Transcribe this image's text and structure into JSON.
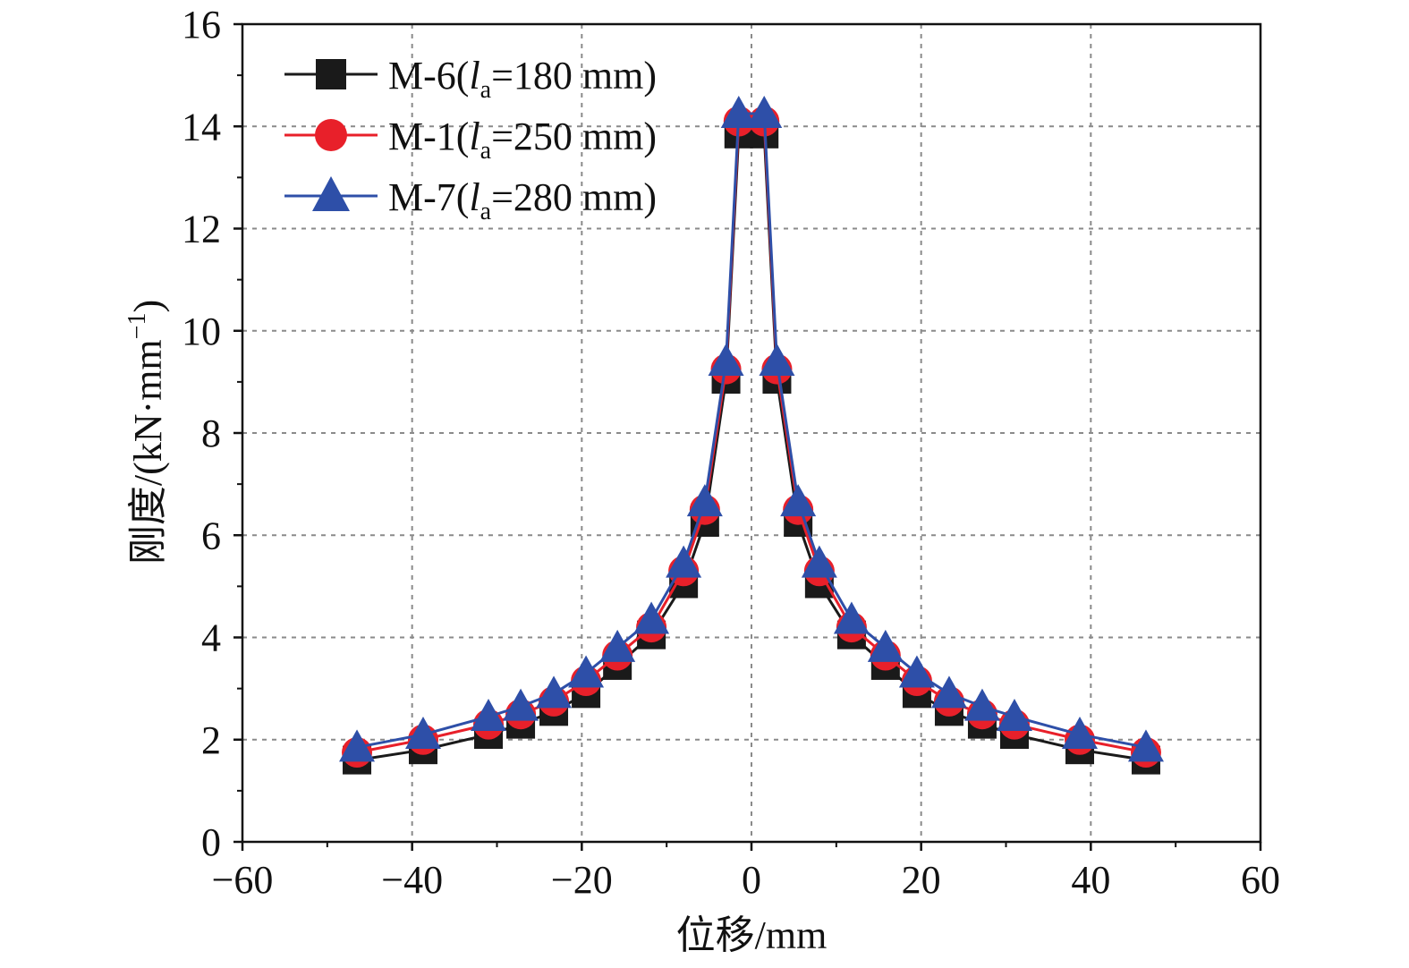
{
  "chart_data": {
    "type": "line",
    "title": "",
    "xlabel": "位移/mm",
    "ylabel": "刚度/(kN·mm",
    "ylabel_sup": "−1",
    "ylabel_close": ")",
    "xlim": [
      -60,
      60
    ],
    "ylim": [
      0,
      16
    ],
    "x_ticks": [
      -60,
      -40,
      -20,
      0,
      20,
      40,
      60
    ],
    "x_tick_labels": [
      "−60",
      "−40",
      "−20",
      "0",
      "20",
      "40",
      "60"
    ],
    "y_ticks": [
      0,
      2,
      4,
      6,
      8,
      10,
      12,
      14,
      16
    ],
    "y_tick_labels": [
      "0",
      "2",
      "4",
      "6",
      "8",
      "10",
      "12",
      "14",
      "16"
    ],
    "grid": true,
    "legend_position": "top-left",
    "x": [
      -46.5,
      -38.7,
      -31.0,
      -27.2,
      -23.3,
      -19.5,
      -15.8,
      -11.8,
      -8.0,
      -5.5,
      -3.0,
      -1.5,
      1.5,
      3.0,
      5.5,
      8.0,
      11.8,
      15.8,
      19.5,
      23.3,
      27.2,
      31.0,
      38.7,
      46.5
    ],
    "series": [
      {
        "name": "M-6(",
        "label_italic": "l",
        "label_sub": "a",
        "label_tail": "=180 mm)",
        "color": "#1a1a1a",
        "marker": "square",
        "values": [
          1.6,
          1.8,
          2.1,
          2.3,
          2.55,
          2.9,
          3.45,
          4.05,
          5.05,
          6.25,
          9.05,
          13.85,
          13.85,
          9.05,
          6.25,
          5.05,
          4.05,
          3.45,
          2.9,
          2.55,
          2.3,
          2.1,
          1.8,
          1.6
        ]
      },
      {
        "name": "M-1(",
        "label_italic": "l",
        "label_sub": "a",
        "label_tail": "=250 mm)",
        "color": "#e8202a",
        "marker": "circle",
        "values": [
          1.75,
          2.0,
          2.3,
          2.5,
          2.75,
          3.15,
          3.65,
          4.2,
          5.3,
          6.5,
          9.25,
          14.1,
          14.1,
          9.25,
          6.5,
          5.3,
          4.2,
          3.65,
          3.15,
          2.75,
          2.5,
          2.3,
          2.0,
          1.75
        ]
      },
      {
        "name": "M-7(",
        "label_italic": "l",
        "label_sub": "a",
        "label_tail": "=280 mm)",
        "color": "#2e4fa8",
        "marker": "triangle",
        "values": [
          1.85,
          2.1,
          2.45,
          2.65,
          2.9,
          3.3,
          3.8,
          4.35,
          5.45,
          6.65,
          9.4,
          14.25,
          14.25,
          9.4,
          6.65,
          5.45,
          4.35,
          3.8,
          3.3,
          2.9,
          2.65,
          2.45,
          2.1,
          1.85
        ]
      }
    ]
  }
}
